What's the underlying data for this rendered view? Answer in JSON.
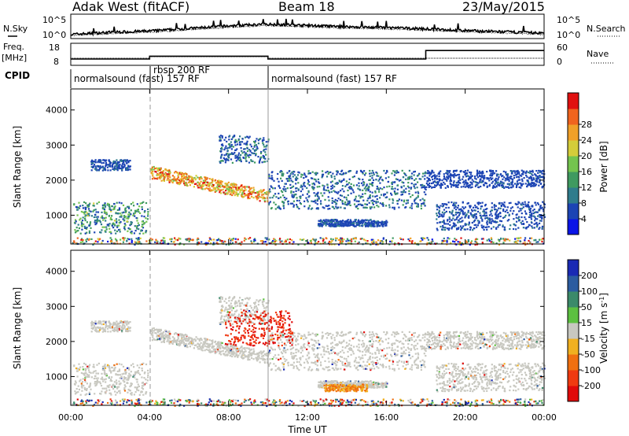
{
  "header": {
    "station": "Adak West (fitACF)",
    "beam": "Beam 18",
    "date": "23/May/2015"
  },
  "summary": {
    "nsky_label": "N.Sky",
    "nsearch_label": "N.Search",
    "freq_label": "Freq.",
    "freq_unit": "[MHz]",
    "nave_label": "Nave",
    "cpid_label": "CPID",
    "noise_ticks": [
      "10^5",
      "10^0"
    ],
    "freq_ticks": [
      "18",
      "8"
    ],
    "nave_ticks": [
      "60",
      "0"
    ]
  },
  "cpid": {
    "segments": [
      {
        "label": "normalsound (fast) 157 RF"
      },
      {
        "label": "rbsp 200 RF"
      },
      {
        "label": "normalsound (fast) 157 RF"
      }
    ],
    "boundaries_ut": [
      4.0,
      10.0
    ]
  },
  "axes": {
    "ylabel": "Slant Range [km]",
    "xlabel": "Time UT",
    "yticks": [
      "1000",
      "2000",
      "3000",
      "4000"
    ],
    "xticks": [
      "00:00",
      "04:00",
      "08:00",
      "12:00",
      "16:00",
      "20:00",
      "00:00"
    ]
  },
  "colorbars": {
    "power": {
      "label": "Power [dB]",
      "ticks": [
        "4",
        "8",
        "12",
        "16",
        "20",
        "24",
        "28"
      ],
      "colors": [
        "#0a14e6",
        "#1c44b4",
        "#2f7c8c",
        "#3f9a60",
        "#74c44e",
        "#d4cc3a",
        "#f0a028",
        "#f0641e",
        "#e01010"
      ]
    },
    "velocity": {
      "label": "Velocity [m s",
      "label_sup": "-1",
      "label_end": "]",
      "ticks": [
        "200",
        "100",
        "50",
        "15",
        "-15",
        "-50",
        "-100",
        "-200"
      ],
      "colors": [
        "#1a2ab4",
        "#2c5ca0",
        "#3b8a6a",
        "#5cc040",
        "#c8c8c0",
        "#f0b020",
        "#f07010",
        "#f03a10",
        "#e00a0a"
      ]
    }
  },
  "chart_data": {
    "type": "heatmap",
    "x_range_hours": [
      0,
      24
    ],
    "y_range_km": [
      180,
      4600
    ],
    "x_unit": "hours UT",
    "y_unit": "km",
    "features": [
      {
        "name": "low-range band 00-04 UT",
        "t_start": 0.1,
        "t_end": 3.9,
        "range_km": [
          500,
          1400
        ],
        "power_db": 16
      },
      {
        "name": "mid band 00-04 UT",
        "t_start": 1.0,
        "t_end": 3.0,
        "range_km": [
          2300,
          2600
        ],
        "power_db": 8
      },
      {
        "name": "main descending layer",
        "t_start": 4.0,
        "t_end": 10.0,
        "range_km": [
          1500,
          2400
        ],
        "power_db": 28
      },
      {
        "name": "high scatter 08-10 UT",
        "t_start": 7.5,
        "t_end": 10.0,
        "range_km": [
          2500,
          3300
        ],
        "power_db": 12
      },
      {
        "name": "main layer 10-18 UT",
        "t_start": 10.0,
        "t_end": 18.0,
        "range_km": [
          1200,
          2300
        ],
        "power_db": 12
      },
      {
        "name": "low patch 13-16 UT",
        "t_start": 12.5,
        "t_end": 16.0,
        "range_km": [
          700,
          900
        ],
        "power_db": 8
      },
      {
        "name": "late band 18-24 UT",
        "t_start": 18.0,
        "t_end": 24.0,
        "range_km": [
          1800,
          2300
        ],
        "power_db": 6
      },
      {
        "name": "late low band 18-24 UT",
        "t_start": 18.5,
        "t_end": 24.0,
        "range_km": [
          600,
          1400
        ],
        "power_db": 8
      }
    ],
    "velocity_features": [
      {
        "name": "negative flow patch",
        "t_start": 7.8,
        "t_end": 11.2,
        "range_km": [
          1900,
          2900
        ],
        "velocity_ms": -200
      },
      {
        "name": "orange band 13-15 UT",
        "t_start": 12.8,
        "t_end": 15.0,
        "range_km": [
          600,
          800
        ],
        "velocity_ms": -50
      }
    ],
    "noise": {
      "log_range": [
        0,
        5
      ],
      "nsky_profile_hours": [
        0,
        2,
        4,
        6,
        8,
        10,
        12,
        14,
        16,
        18,
        20,
        22,
        24
      ],
      "nsky_profile_log": [
        0.6,
        1.1,
        1.4,
        2.0,
        2.6,
        3.0,
        2.7,
        2.4,
        2.2,
        1.9,
        1.5,
        1.2,
        0.9
      ]
    },
    "frequency": {
      "hours": [
        0,
        4.0,
        4.0,
        10.0,
        10.0,
        18.0,
        18.0,
        24
      ],
      "mhz": [
        10.5,
        10.5,
        12.0,
        12.0,
        10.5,
        10.5,
        15.0,
        15.0
      ]
    }
  }
}
